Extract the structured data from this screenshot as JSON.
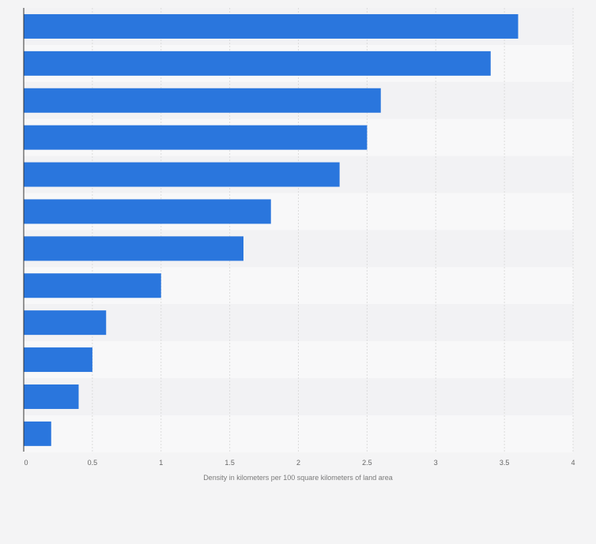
{
  "chart_data": {
    "type": "bar",
    "orientation": "horizontal",
    "title": "",
    "xlabel": "Density in kilometers per 100 square kilometers of land area",
    "ylabel": "",
    "categories": [
      "",
      "",
      "",
      "",
      "",
      "",
      "",
      "",
      "",
      "",
      "",
      ""
    ],
    "values": [
      3.6,
      3.4,
      2.6,
      2.5,
      2.3,
      1.8,
      1.6,
      1.0,
      0.6,
      0.5,
      0.4,
      0.2
    ],
    "xlim": [
      0,
      4
    ],
    "xticks": [
      "0",
      "0.5",
      "1",
      "1.5",
      "2",
      "2.5",
      "3",
      "3.5",
      "4"
    ],
    "grid": true,
    "bar_color": "#2a76dd",
    "band_colors": [
      "#f2f2f4",
      "#f8f8f9"
    ]
  }
}
